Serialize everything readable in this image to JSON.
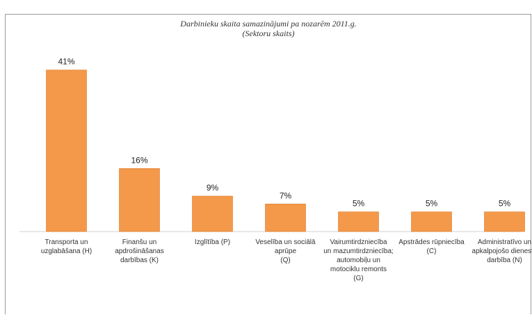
{
  "caption": {
    "prefix": "",
    "underlined": "",
    "suffix": ""
  },
  "chart_data": {
    "type": "bar",
    "title": "Darbinieku skaita samazinājumi pa nozarēm 2011.g.",
    "subtitle": "(Sektoru skaits)",
    "categories": [
      [
        "Transporta un",
        "uzglabāšana (H)"
      ],
      [
        "Finanšu un",
        "apdrošināšanas",
        "darbības (K)"
      ],
      [
        "Izglītība (P)"
      ],
      [
        "Veselība un sociālā",
        "aprūpe",
        "(Q)"
      ],
      [
        "Vairumtirdzniecība",
        "un mazumtirdzniecība;",
        "automobiļu un",
        "motociklu remonts",
        "(G)"
      ],
      [
        "Apstrādes rūpniecība",
        "(C)"
      ],
      [
        "Administratīvo un",
        "apkalpojošo dienestu",
        "darbība (N)"
      ]
    ],
    "values": [
      41,
      16,
      9,
      7,
      5,
      5,
      5
    ],
    "value_labels": [
      "41%",
      "16%",
      "9%",
      "7%",
      "5%",
      "5%",
      "5%"
    ],
    "unit": "%",
    "ylim": [
      0,
      45
    ],
    "grid": false,
    "legend": "none",
    "bar_color": "#f4984a"
  }
}
